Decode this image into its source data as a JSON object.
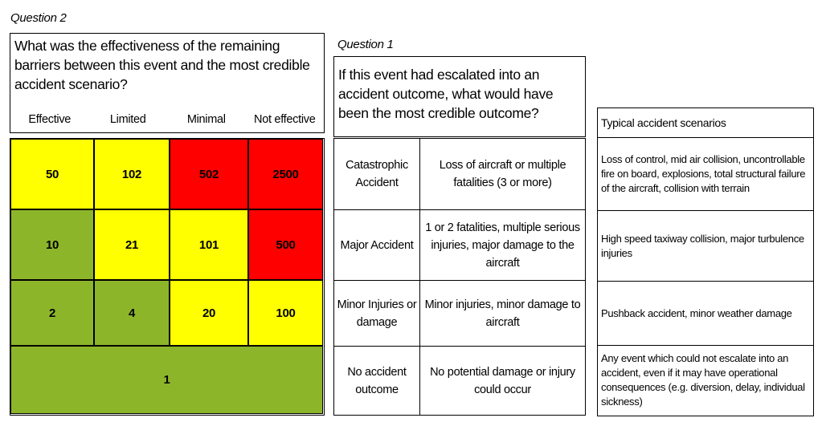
{
  "question2": {
    "label": "Question 2",
    "text": "What was the effectiveness of the remaining barriers between this event and the most credible accident scenario?",
    "columns": [
      "Effective",
      "Limited",
      "Minimal",
      "Not effective"
    ]
  },
  "matrix": {
    "rows": [
      [
        {
          "value": "50",
          "color": "#ffff00"
        },
        {
          "value": "102",
          "color": "#ffff00"
        },
        {
          "value": "502",
          "color": "#ff0000"
        },
        {
          "value": "2500",
          "color": "#ff0000"
        }
      ],
      [
        {
          "value": "10",
          "color": "#8db52a"
        },
        {
          "value": "21",
          "color": "#ffff00"
        },
        {
          "value": "101",
          "color": "#ffff00"
        },
        {
          "value": "500",
          "color": "#ff0000"
        }
      ],
      [
        {
          "value": "2",
          "color": "#8db52a"
        },
        {
          "value": "4",
          "color": "#8db52a"
        },
        {
          "value": "20",
          "color": "#ffff00"
        },
        {
          "value": "100",
          "color": "#ffff00"
        }
      ]
    ],
    "bottom_value": "1",
    "bottom_color": "#8db52a"
  },
  "question1": {
    "label": "Question 1",
    "text": "If this event had escalated into an accident outcome, what would have been the most credible outcome?",
    "outcomes": [
      {
        "category": "Catastrophic Accident",
        "description": "Loss of aircraft or multiple fatalities (3 or more)"
      },
      {
        "category": "Major Accident",
        "description": "1 or 2 fatalities, multiple serious injuries, major damage to the aircraft"
      },
      {
        "category": "Minor Injuries or damage",
        "description": "Minor injuries, minor damage to aircraft"
      },
      {
        "category": "No accident outcome",
        "description": "No potential damage or injury could occur"
      }
    ]
  },
  "scenarios": {
    "header": "Typical accident scenarios",
    "items": [
      "Loss of control, mid air collision, uncontrollable fire on board, explosions, total structural failure of the aircraft, collision with terrain",
      "High speed taxiway collision, major turbulence injuries",
      "Pushback accident, minor weather damage",
      "Any event which could not escalate into an accident, even if it may have operational consequences (e.g. diversion, delay, individual sickness)"
    ]
  }
}
